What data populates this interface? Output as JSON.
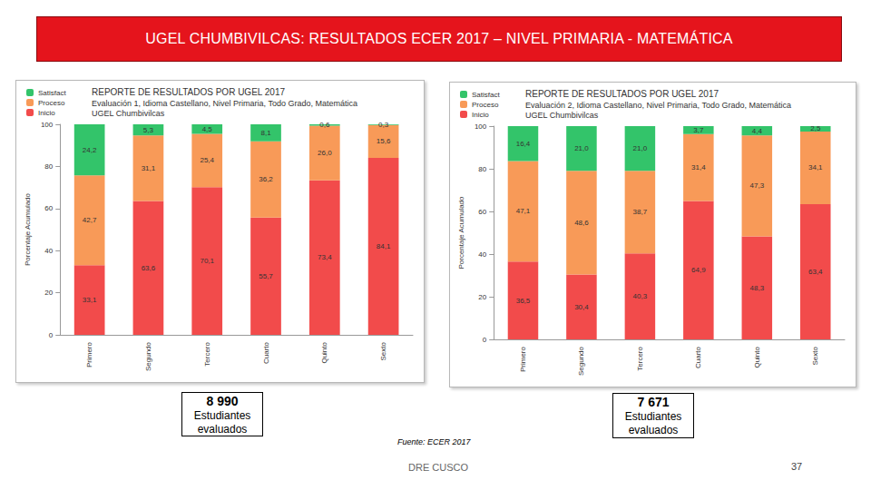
{
  "header": {
    "title": "UGEL CHUMBIVILCAS: RESULTADOS ECER 2017 – NIVEL PRIMARIA - MATEMÁTICA"
  },
  "chart_data": [
    {
      "type": "bar",
      "title": "REPORTE DE RESULTADOS POR UGEL 2017",
      "subtitle": [
        "Evaluación 1, Idioma Castellano, Nivel Primaria, Todo Grado, Matemática",
        "UGEL Chumbivilcas"
      ],
      "y_label": "Porcentaje Acumulado",
      "categories": [
        "Primero",
        "Segundo",
        "Tercero",
        "Cuarto",
        "Quinto",
        "Sexto"
      ],
      "series": [
        {
          "name": "Inicio",
          "color": "#f24b4b",
          "values": [
            33.1,
            63.6,
            70.1,
            55.7,
            73.4,
            84.1
          ],
          "value_labels": [
            "33,1",
            "63,6",
            "70,1",
            "55,7",
            "73,4",
            "84,1"
          ]
        },
        {
          "name": "Proceso",
          "color": "#f89a58",
          "values": [
            42.7,
            31.1,
            25.4,
            36.2,
            26.0,
            15.6
          ],
          "value_labels": [
            "42,7",
            "31,1",
            "25,4",
            "36,2",
            "26,0",
            "15,6"
          ]
        },
        {
          "name": "Satisfact",
          "color": "#33c46a",
          "values": [
            24.2,
            5.3,
            4.5,
            8.1,
            0.6,
            0.3
          ],
          "value_labels": [
            "24,2",
            "5,3",
            "4,5",
            "8,1",
            "0,6",
            "0,3"
          ]
        }
      ],
      "ylim": [
        0,
        100
      ],
      "yticks": [
        0,
        20,
        40,
        60,
        80,
        100
      ],
      "stacked": true,
      "data_labels": true,
      "grid": false,
      "legend": "top-left"
    },
    {
      "type": "bar",
      "title": "REPORTE DE RESULTADOS POR UGEL 2017",
      "subtitle": [
        "Evaluación 2, Idioma Castellano, Nivel Primaria, Todo Grado, Matemática",
        "UGEL Chumbivilcas"
      ],
      "y_label": "Porcentaje Acumulado",
      "categories": [
        "Primero",
        "Segundo",
        "Tercero",
        "Cuarto",
        "Quinto",
        "Sexto"
      ],
      "series": [
        {
          "name": "Inicio",
          "color": "#f24b4b",
          "values": [
            36.5,
            30.4,
            40.3,
            64.9,
            48.3,
            63.4
          ],
          "value_labels": [
            "36,5",
            "30,4",
            "40,3",
            "64,9",
            "48,3",
            "63,4"
          ]
        },
        {
          "name": "Proceso",
          "color": "#f89a58",
          "values": [
            47.1,
            48.6,
            38.7,
            31.4,
            47.3,
            34.1
          ],
          "value_labels": [
            "47,1",
            "48,6",
            "38,7",
            "31,4",
            "47,3",
            "34,1"
          ]
        },
        {
          "name": "Satisfact",
          "color": "#33c46a",
          "values": [
            16.4,
            21.0,
            21.0,
            3.7,
            4.4,
            2.5
          ],
          "value_labels": [
            "16,4",
            "21,0",
            "21,0",
            "3,7",
            "4,4",
            "2,5"
          ]
        }
      ],
      "ylim": [
        0,
        100
      ],
      "yticks": [
        0,
        20,
        40,
        60,
        80,
        100
      ],
      "stacked": true,
      "data_labels": true,
      "grid": false,
      "legend": "top-left"
    }
  ],
  "boxes": [
    {
      "count": "8 990",
      "text": [
        "Estudiantes",
        "evaluados"
      ]
    },
    {
      "count": "7 671",
      "text": [
        "Estudiantes",
        "evaluados"
      ]
    }
  ],
  "footer": {
    "source": "Fuente: ECER 2017",
    "organization": "DRE CUSCO",
    "page": "37"
  }
}
